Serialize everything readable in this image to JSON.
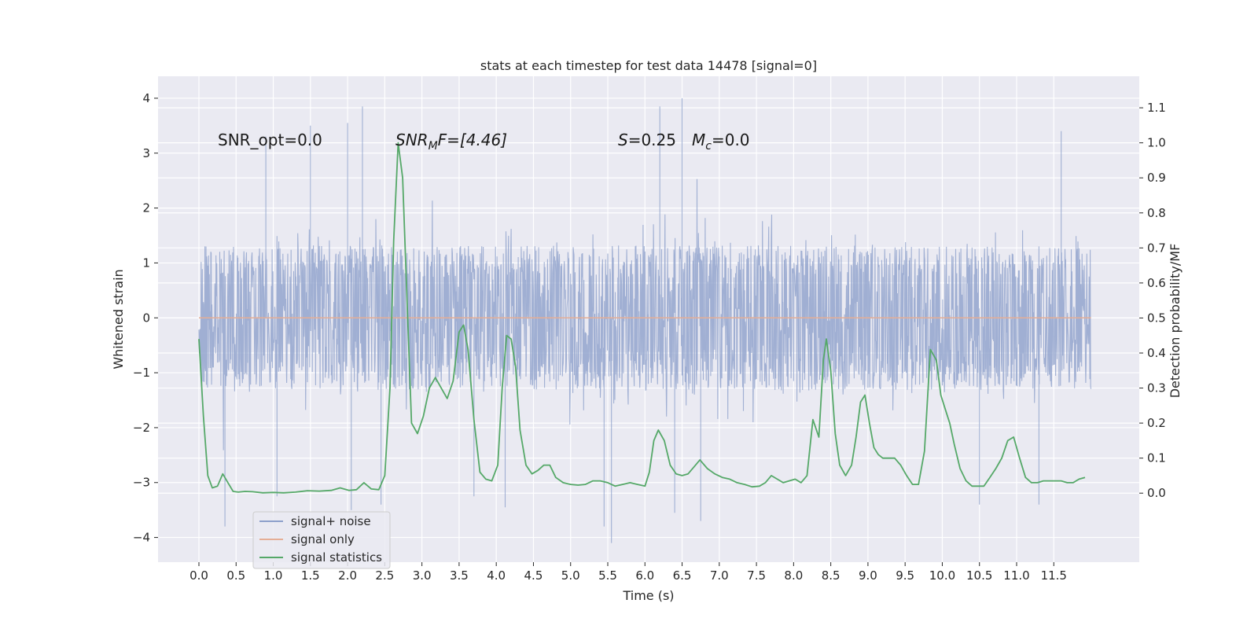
{
  "chart_data": {
    "type": "line",
    "title": "stats at each timestep for test data 14478 [signal=0]",
    "xlabel": "Time (s)",
    "ylabel": "Whitened strain",
    "y2label": "Detection probability/MF",
    "xlim": [
      -0.55,
      12.65
    ],
    "ylim": [
      -4.45,
      4.4
    ],
    "y2lim": [
      -0.197,
      1.19
    ],
    "grid": true,
    "legend_position": "lower-left",
    "xticks": [
      0.0,
      0.5,
      1.0,
      1.5,
      2.0,
      2.5,
      3.0,
      3.5,
      4.0,
      4.5,
      5.0,
      5.5,
      6.0,
      6.5,
      7.0,
      7.5,
      8.0,
      8.5,
      9.0,
      9.5,
      10.0,
      10.5,
      11.0,
      11.5
    ],
    "xtick_labels": [
      "0.0",
      "0.5",
      "1.0",
      "1.5",
      "2.0",
      "2.5",
      "3.0",
      "3.5",
      "4.0",
      "4.5",
      "5.0",
      "5.5",
      "6.0",
      "6.5",
      "7.0",
      "7.5",
      "8.0",
      "8.5",
      "9.0",
      "9.5",
      "10.0",
      "10.5",
      "11.0",
      "11.5"
    ],
    "yticks": [
      4,
      3,
      2,
      1,
      0,
      -1,
      -2,
      -3,
      -4
    ],
    "ytick_labels": [
      "4",
      "3",
      "2",
      "1",
      "0",
      "−1",
      "−2",
      "−3",
      "−4"
    ],
    "y2ticks": [
      1.1,
      1.0,
      0.9,
      0.8,
      0.7,
      0.6,
      0.5,
      0.4,
      0.3,
      0.2,
      0.1,
      0.0
    ],
    "y2tick_labels": [
      "1.1",
      "1.0",
      "0.9",
      "0.8",
      "0.7",
      "0.6",
      "0.5",
      "0.4",
      "0.3",
      "0.2",
      "0.1",
      "0.0"
    ],
    "annotations": {
      "snr_opt": "SNR_opt=0.0",
      "snr_mf_main": "SNR",
      "snr_mf_sub": "M",
      "snr_mf_rest": "F=[4.46]",
      "s_sym": "S",
      "s_val": "=0.25",
      "mc_sym": "M",
      "mc_sub": "c",
      "mc_val": "=0.0"
    },
    "series": [
      {
        "name": "signal+ noise",
        "color": "#8da0cb",
        "note_x_range": [
          0.0,
          12.0
        ],
        "envelope": {
          "core_band": [
            -1.3,
            1.2
          ],
          "typical_peaks": [
            -2.3,
            2.3
          ],
          "extreme_spikes": [
            {
              "x": 0.35,
              "y": -3.8
            },
            {
              "x": 0.9,
              "y": 3.3
            },
            {
              "x": 1.5,
              "y": 3.5
            },
            {
              "x": 2.0,
              "y": 3.55
            },
            {
              "x": 2.05,
              "y": -3.5
            },
            {
              "x": 2.2,
              "y": 3.85
            },
            {
              "x": 2.45,
              "y": -3.4
            },
            {
              "x": 5.45,
              "y": -3.8
            },
            {
              "x": 5.55,
              "y": -4.1
            },
            {
              "x": 6.2,
              "y": 3.85
            },
            {
              "x": 6.5,
              "y": 4.0
            },
            {
              "x": 6.75,
              "y": -3.7
            },
            {
              "x": 6.4,
              "y": -3.55
            },
            {
              "x": 4.12,
              "y": -3.45
            },
            {
              "x": 3.7,
              "y": -3.25
            },
            {
              "x": 10.5,
              "y": -3.4
            },
            {
              "x": 11.3,
              "y": -3.4
            },
            {
              "x": 11.6,
              "y": 3.4
            },
            {
              "x": 1.05,
              "y": -3.25
            }
          ]
        }
      },
      {
        "name": "signal only",
        "color": "#e5ae96",
        "x": [
          0.0,
          12.0
        ],
        "y": [
          0.0,
          0.0
        ]
      },
      {
        "name": "signal statistics",
        "color": "#55a868",
        "axis": "right",
        "x": [
          0.0,
          0.06,
          0.12,
          0.18,
          0.25,
          0.32,
          0.39,
          0.46,
          0.53,
          0.62,
          0.72,
          0.86,
          1.0,
          1.14,
          1.3,
          1.46,
          1.62,
          1.78,
          1.9,
          2.02,
          2.12,
          2.22,
          2.32,
          2.42,
          2.5,
          2.57,
          2.62,
          2.68,
          2.74,
          2.8,
          2.86,
          2.94,
          3.02,
          3.1,
          3.18,
          3.26,
          3.34,
          3.42,
          3.5,
          3.56,
          3.62,
          3.7,
          3.78,
          3.86,
          3.94,
          4.02,
          4.08,
          4.14,
          4.2,
          4.26,
          4.32,
          4.4,
          4.48,
          4.56,
          4.64,
          4.72,
          4.8,
          4.9,
          5.0,
          5.1,
          5.2,
          5.3,
          5.4,
          5.5,
          5.6,
          5.7,
          5.8,
          5.9,
          6.0,
          6.06,
          6.12,
          6.18,
          6.26,
          6.34,
          6.42,
          6.5,
          6.58,
          6.66,
          6.74,
          6.84,
          6.94,
          7.04,
          7.14,
          7.24,
          7.34,
          7.44,
          7.54,
          7.62,
          7.7,
          7.78,
          7.86,
          7.94,
          8.02,
          8.1,
          8.18,
          8.26,
          8.34,
          8.4,
          8.44,
          8.5,
          8.56,
          8.62,
          8.7,
          8.78,
          8.84,
          8.9,
          8.96,
          9.02,
          9.08,
          9.14,
          9.2,
          9.28,
          9.36,
          9.44,
          9.52,
          9.6,
          9.68,
          9.76,
          9.84,
          9.92,
          9.98,
          10.04,
          10.1,
          10.16,
          10.24,
          10.32,
          10.4,
          10.48,
          10.56,
          10.64,
          10.72,
          10.8,
          10.88,
          10.96,
          11.04,
          11.12,
          11.2,
          11.28,
          11.36,
          11.44,
          11.52,
          11.6,
          11.68,
          11.76,
          11.84,
          11.92
        ],
        "y": [
          0.44,
          0.22,
          0.05,
          0.015,
          0.02,
          0.055,
          0.03,
          0.005,
          0.003,
          0.005,
          0.004,
          0.001,
          0.002,
          0.001,
          0.003,
          0.007,
          0.006,
          0.008,
          0.015,
          0.008,
          0.01,
          0.03,
          0.012,
          0.01,
          0.05,
          0.3,
          0.72,
          1.0,
          0.9,
          0.55,
          0.2,
          0.17,
          0.22,
          0.3,
          0.33,
          0.3,
          0.27,
          0.32,
          0.46,
          0.48,
          0.41,
          0.21,
          0.06,
          0.04,
          0.035,
          0.08,
          0.3,
          0.45,
          0.44,
          0.36,
          0.18,
          0.08,
          0.055,
          0.065,
          0.08,
          0.08,
          0.045,
          0.03,
          0.025,
          0.023,
          0.025,
          0.035,
          0.035,
          0.03,
          0.02,
          0.025,
          0.03,
          0.025,
          0.02,
          0.06,
          0.15,
          0.18,
          0.15,
          0.08,
          0.055,
          0.05,
          0.055,
          0.075,
          0.095,
          0.07,
          0.055,
          0.045,
          0.04,
          0.03,
          0.025,
          0.018,
          0.02,
          0.03,
          0.05,
          0.04,
          0.03,
          0.035,
          0.04,
          0.03,
          0.05,
          0.21,
          0.16,
          0.38,
          0.44,
          0.35,
          0.17,
          0.08,
          0.05,
          0.08,
          0.16,
          0.26,
          0.28,
          0.2,
          0.13,
          0.11,
          0.1,
          0.1,
          0.1,
          0.08,
          0.05,
          0.025,
          0.025,
          0.12,
          0.41,
          0.38,
          0.28,
          0.24,
          0.2,
          0.14,
          0.07,
          0.035,
          0.02,
          0.02,
          0.02,
          0.045,
          0.07,
          0.1,
          0.15,
          0.16,
          0.1,
          0.045,
          0.03,
          0.03,
          0.035,
          0.035,
          0.035,
          0.035,
          0.03,
          0.03,
          0.04,
          0.045
        ]
      }
    ]
  }
}
